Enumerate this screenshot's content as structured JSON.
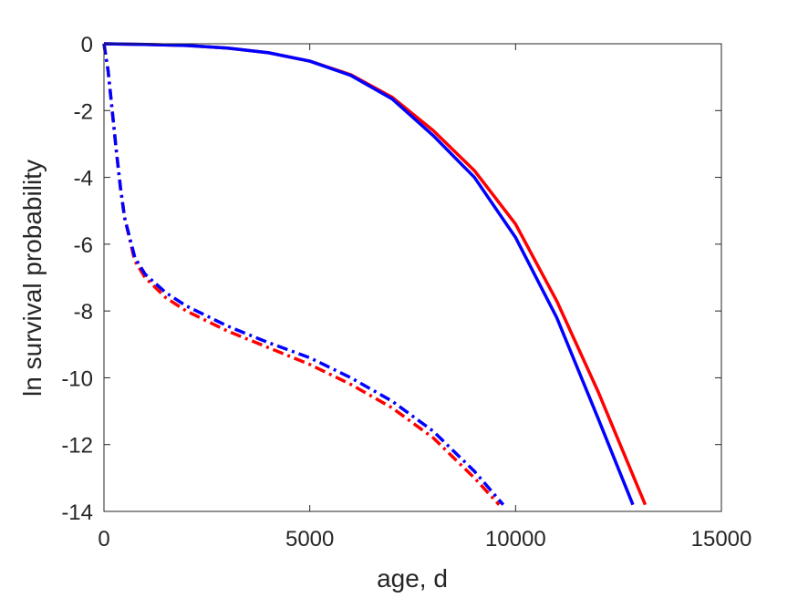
{
  "chart_data": {
    "type": "line",
    "title": "",
    "xlabel": "age, d",
    "ylabel": "ln survival probability",
    "xlim": [
      0,
      15000
    ],
    "ylim": [
      -14,
      0
    ],
    "xticks": [
      0,
      5000,
      10000,
      15000
    ],
    "xtick_labels": [
      "0",
      "5000",
      "10000",
      "15000"
    ],
    "yticks": [
      0,
      -2,
      -4,
      -6,
      -8,
      -10,
      -12,
      -14
    ],
    "ytick_labels": [
      "0",
      "-2",
      "-4",
      "-6",
      "-8",
      "-10",
      "-12",
      "-14"
    ],
    "grid": false,
    "legend": "none",
    "series": [
      {
        "color": "#ff0000",
        "style": "solid",
        "x": [
          0,
          1000,
          2000,
          3000,
          4000,
          5000,
          6000,
          7000,
          8000,
          9000,
          10000,
          11000,
          12000,
          13150
        ],
        "y": [
          0,
          -0.02,
          -0.05,
          -0.13,
          -0.27,
          -0.52,
          -0.93,
          -1.6,
          -2.6,
          -3.8,
          -5.4,
          -7.7,
          -10.4,
          -13.8
        ]
      },
      {
        "color": "#0000ff",
        "style": "solid",
        "x": [
          0,
          1000,
          2000,
          3000,
          4000,
          5000,
          6000,
          7000,
          8000,
          9000,
          10000,
          11000,
          12000,
          12850
        ],
        "y": [
          0,
          -0.02,
          -0.05,
          -0.13,
          -0.27,
          -0.52,
          -0.95,
          -1.65,
          -2.75,
          -4.0,
          -5.8,
          -8.2,
          -11.2,
          -13.8
        ]
      },
      {
        "color": "#ff0000",
        "style": "dashdot",
        "x": [
          0,
          100,
          200,
          300,
          400,
          500,
          750,
          1000,
          1500,
          2000,
          3000,
          4000,
          5000,
          6000,
          7000,
          8000,
          9000,
          9600
        ],
        "y": [
          0,
          -0.8,
          -2.0,
          -3.2,
          -4.3,
          -5.2,
          -6.5,
          -7.0,
          -7.6,
          -8.0,
          -8.6,
          -9.1,
          -9.6,
          -10.2,
          -10.9,
          -11.8,
          -13.0,
          -13.8
        ]
      },
      {
        "color": "#0000ff",
        "style": "dashdot",
        "x": [
          0,
          100,
          200,
          300,
          400,
          500,
          750,
          1000,
          1500,
          2000,
          3000,
          4000,
          5000,
          6000,
          7000,
          8000,
          9000,
          9700
        ],
        "y": [
          0,
          -0.8,
          -2.0,
          -3.2,
          -4.3,
          -5.2,
          -6.4,
          -6.9,
          -7.45,
          -7.85,
          -8.45,
          -8.95,
          -9.4,
          -10.0,
          -10.7,
          -11.6,
          -12.8,
          -13.8
        ]
      }
    ]
  }
}
